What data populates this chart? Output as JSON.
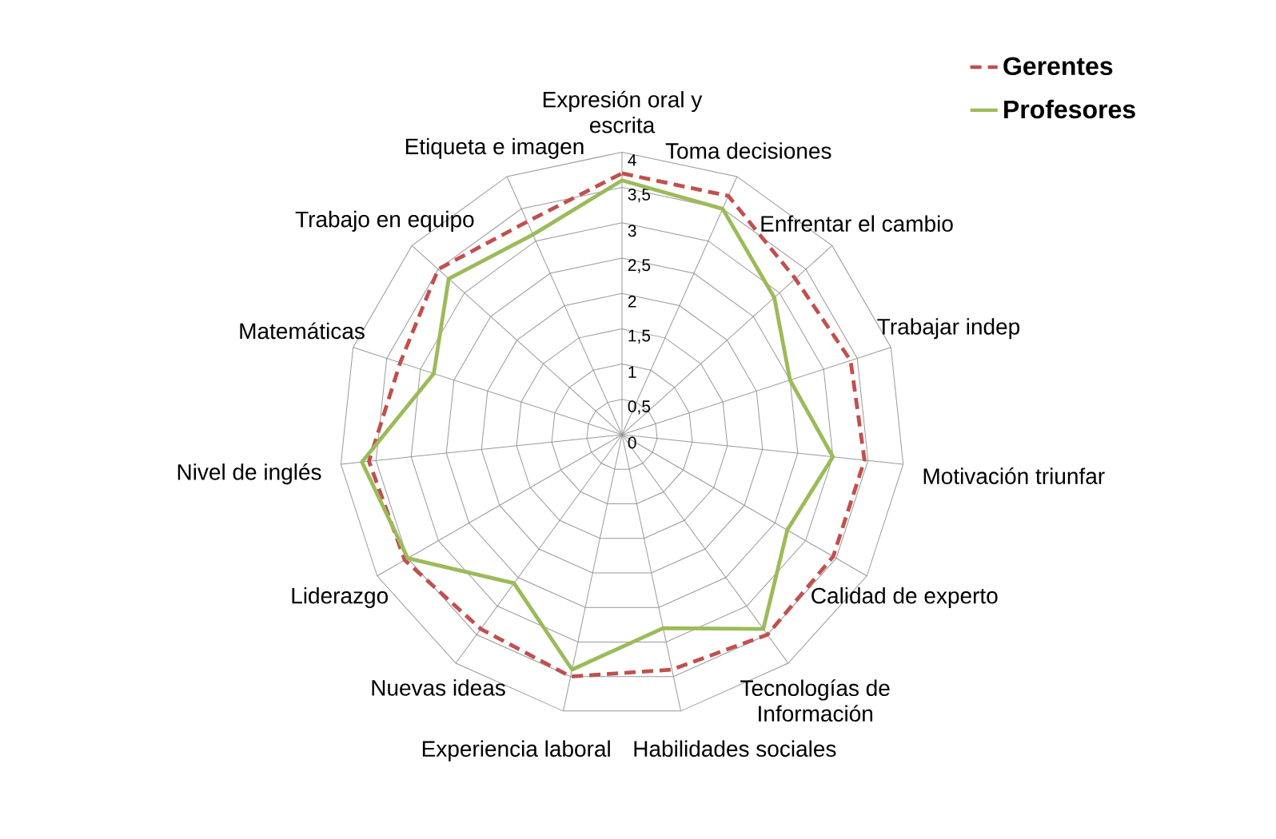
{
  "chart_data": {
    "type": "radar",
    "categories": [
      "Expresión oral y escrita",
      "Toma decisiones",
      "Enfrentar el cambio",
      "Trabajar indep",
      "Motivación triunfar",
      "Calidad de experto",
      "Tecnologías de Información",
      "Habilidades sociales",
      "Experiencia laboral",
      "Nuevas ideas",
      "Liderazgo",
      "Nivel de inglés",
      "Matemáticas",
      "Trabajo en equipo",
      "Etiqueta e imagen"
    ],
    "series": [
      {
        "name": "Gerentes",
        "color": "#c0504d",
        "line_style": "dashed",
        "values": [
          3.7,
          3.7,
          3.3,
          3.4,
          3.45,
          3.45,
          3.5,
          3.4,
          3.5,
          3.4,
          3.55,
          3.6,
          3.3,
          3.5,
          3.3
        ]
      },
      {
        "name": "Profesores",
        "color": "#9bbb59",
        "line_style": "solid",
        "values": [
          3.6,
          3.5,
          2.9,
          2.5,
          3.0,
          2.7,
          3.4,
          2.8,
          3.4,
          2.6,
          3.5,
          3.7,
          2.8,
          3.3,
          3.1
        ]
      }
    ],
    "ylim": [
      0,
      4
    ],
    "yticks": [
      0,
      {
        "value": 0.5,
        "label": "0,5"
      },
      1,
      {
        "value": 1.5,
        "label": "1,5"
      },
      2,
      {
        "value": 2.5,
        "label": "2,5"
      },
      3,
      {
        "value": 3.5,
        "label": "3,5"
      },
      4
    ],
    "grid": true,
    "legend": "top right",
    "marker": "none"
  }
}
